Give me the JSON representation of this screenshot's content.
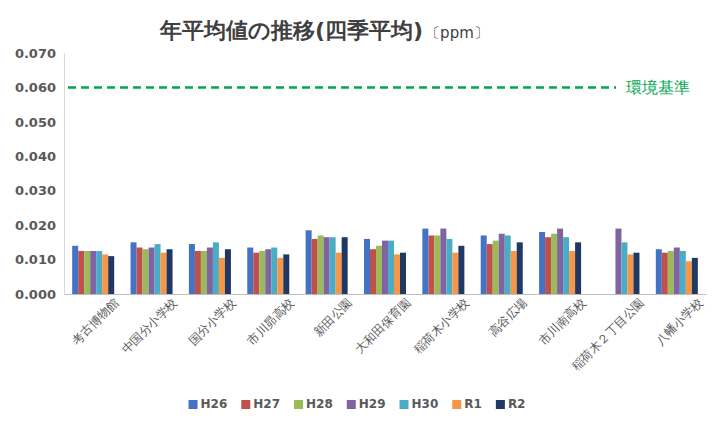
{
  "chart_data": {
    "type": "bar",
    "title": "年平均値の推移(四季平均)",
    "subtitle": "〔ppm〕",
    "categories": [
      "考古博物館",
      "中国分小学校",
      "国分小学校",
      "市川昴高校",
      "新田公園",
      "大和田保育園",
      "稲荷木小学校",
      "高谷広場",
      "市川南高校",
      "稲荷木２丁目公園",
      "八幡小学校"
    ],
    "series": [
      {
        "name": "H26",
        "color": "#4472c4",
        "values": [
          0.014,
          0.015,
          0.0145,
          0.0135,
          0.0185,
          0.016,
          0.019,
          0.017,
          0.018,
          null,
          0.013
        ]
      },
      {
        "name": "H27",
        "color": "#c0504d",
        "values": [
          0.0125,
          0.0135,
          0.0125,
          0.012,
          0.016,
          0.013,
          0.017,
          0.0145,
          0.0165,
          null,
          0.012
        ]
      },
      {
        "name": "H28",
        "color": "#9bbb59",
        "values": [
          0.0125,
          0.013,
          0.0125,
          0.0125,
          0.017,
          0.014,
          0.017,
          0.0155,
          0.0175,
          null,
          0.0125
        ]
      },
      {
        "name": "H29",
        "color": "#8064a2",
        "values": [
          0.0125,
          0.0135,
          0.0135,
          0.013,
          0.0165,
          0.0155,
          0.019,
          0.0175,
          0.019,
          0.019,
          0.0135
        ]
      },
      {
        "name": "H30",
        "color": "#4bacc6",
        "values": [
          0.0125,
          0.0145,
          0.015,
          0.0135,
          0.0165,
          0.0155,
          0.016,
          0.017,
          0.0165,
          0.015,
          0.0125
        ]
      },
      {
        "name": "R1",
        "color": "#f79646",
        "values": [
          0.0115,
          0.012,
          0.0105,
          0.0105,
          0.012,
          0.0115,
          0.012,
          0.0125,
          0.0125,
          0.0115,
          0.0095
        ]
      },
      {
        "name": "R2",
        "color": "#1f3864",
        "values": [
          0.011,
          0.013,
          0.013,
          0.0115,
          0.0165,
          0.012,
          0.014,
          0.015,
          0.015,
          0.012,
          0.0105
        ]
      }
    ],
    "ylim": [
      0,
      0.07
    ],
    "yticks": [
      {
        "value": 0,
        "label": "0.000"
      },
      {
        "value": 0.01,
        "label": "0.010"
      },
      {
        "value": 0.02,
        "label": "0.020"
      },
      {
        "value": 0.03,
        "label": "0.030"
      },
      {
        "value": 0.04,
        "label": "0.040"
      },
      {
        "value": 0.05,
        "label": "0.050"
      },
      {
        "value": 0.06,
        "label": "0.060"
      },
      {
        "value": 0.07,
        "label": "0.070"
      }
    ],
    "grid": false,
    "legend": "bottom",
    "annotations": [
      {
        "type": "hline",
        "y": 0.06,
        "label": "環境基準",
        "color": "#00a651",
        "line_style": "dashed"
      }
    ]
  }
}
